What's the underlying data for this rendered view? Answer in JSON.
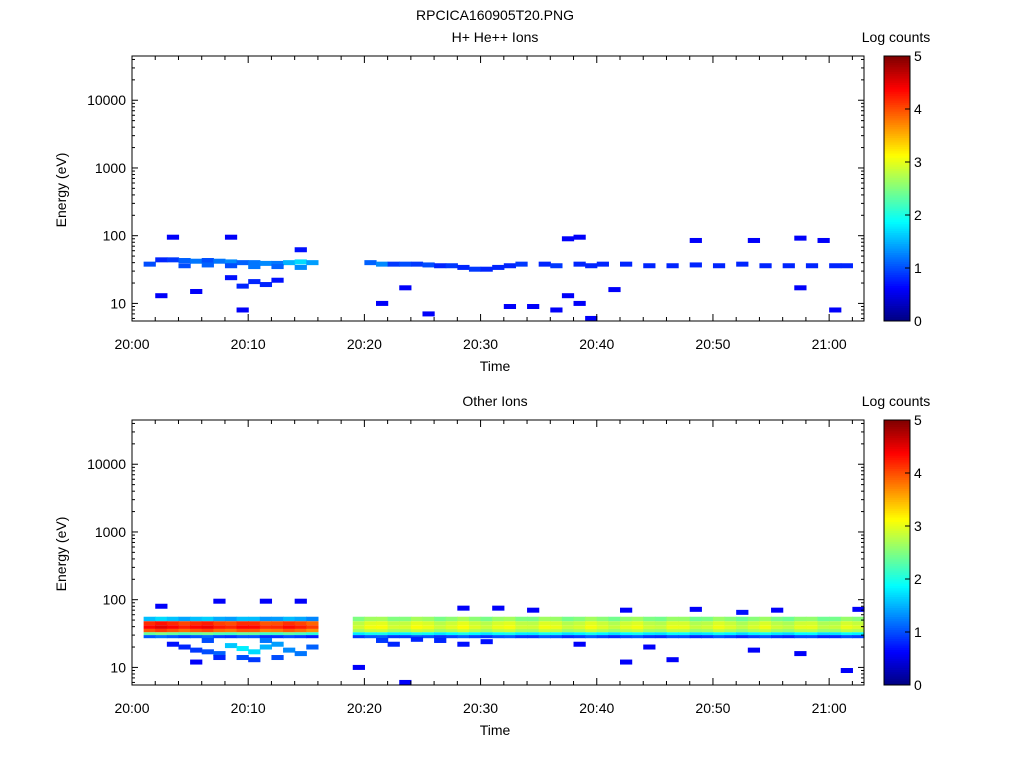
{
  "figure": {
    "filename": "RPCICA160905T20.PNG"
  },
  "colormap": [
    "#00007f",
    "#0000ff",
    "#0080ff",
    "#00ffff",
    "#80ff80",
    "#ffff00",
    "#ff8000",
    "#ff0000",
    "#7f0000"
  ],
  "chart_data": [
    {
      "type": "heatmap",
      "title": "H+ He++ Ions",
      "xlabel": "Time",
      "ylabel": "Energy (eV)",
      "colorbar_label": "Log counts",
      "xlim": [
        "20:00",
        "21:03"
      ],
      "ylim": [
        5.5,
        45000
      ],
      "yscale": "log",
      "xticks": [
        "20:00",
        "20:10",
        "20:20",
        "20:30",
        "20:40",
        "20:50",
        "21:00"
      ],
      "yticks": [
        "10",
        "100",
        "1000",
        "10000"
      ],
      "clim": [
        0,
        5
      ],
      "cticks": [
        "0",
        "1",
        "2",
        "3",
        "4",
        "5"
      ],
      "data_gap": [
        "20:16",
        "20:19"
      ],
      "cells": [
        {
          "t": "20:01",
          "e": 38,
          "v": 1.0
        },
        {
          "t": "20:02",
          "e": 44,
          "v": 0.8
        },
        {
          "t": "20:03",
          "e": 44,
          "v": 0.9
        },
        {
          "t": "20:04",
          "e": 43,
          "v": 1.1
        },
        {
          "t": "20:05",
          "e": 42,
          "v": 1.2
        },
        {
          "t": "20:06",
          "e": 43,
          "v": 1.0
        },
        {
          "t": "20:07",
          "e": 42,
          "v": 1.2
        },
        {
          "t": "20:08",
          "e": 41,
          "v": 1.3
        },
        {
          "t": "20:09",
          "e": 40,
          "v": 1.1
        },
        {
          "t": "20:10",
          "e": 40,
          "v": 1.2
        },
        {
          "t": "20:11",
          "e": 39,
          "v": 1.3
        },
        {
          "t": "20:12",
          "e": 39,
          "v": 1.2
        },
        {
          "t": "20:13",
          "e": 40,
          "v": 1.5
        },
        {
          "t": "20:14",
          "e": 41,
          "v": 1.7
        },
        {
          "t": "20:15",
          "e": 40,
          "v": 1.4
        },
        {
          "t": "20:04",
          "e": 36,
          "v": 1.0
        },
        {
          "t": "20:06",
          "e": 37,
          "v": 1.1
        },
        {
          "t": "20:08",
          "e": 36,
          "v": 1.0
        },
        {
          "t": "20:10",
          "e": 35,
          "v": 1.2
        },
        {
          "t": "20:12",
          "e": 35,
          "v": 1.1
        },
        {
          "t": "20:14",
          "e": 34,
          "v": 1.3
        },
        {
          "t": "20:08",
          "e": 24,
          "v": 0.7
        },
        {
          "t": "20:10",
          "e": 21,
          "v": 0.8
        },
        {
          "t": "20:11",
          "e": 19,
          "v": 0.8
        },
        {
          "t": "20:12",
          "e": 22,
          "v": 0.7
        },
        {
          "t": "20:09",
          "e": 18,
          "v": 0.8
        },
        {
          "t": "20:05",
          "e": 15,
          "v": 0.6
        },
        {
          "t": "20:02",
          "e": 13,
          "v": 0.6
        },
        {
          "t": "20:03",
          "e": 95,
          "v": 0.6
        },
        {
          "t": "20:08",
          "e": 95,
          "v": 0.6
        },
        {
          "t": "20:14",
          "e": 62,
          "v": 0.7
        },
        {
          "t": "20:09",
          "e": 8,
          "v": 0.6
        },
        {
          "t": "20:20",
          "e": 40,
          "v": 1.1
        },
        {
          "t": "20:21",
          "e": 38,
          "v": 1.3
        },
        {
          "t": "20:22",
          "e": 38,
          "v": 0.9
        },
        {
          "t": "20:23",
          "e": 38,
          "v": 1.0
        },
        {
          "t": "20:24",
          "e": 38,
          "v": 0.9
        },
        {
          "t": "20:25",
          "e": 37,
          "v": 1.0
        },
        {
          "t": "20:26",
          "e": 36,
          "v": 0.8
        },
        {
          "t": "20:27",
          "e": 36,
          "v": 0.9
        },
        {
          "t": "20:28",
          "e": 34,
          "v": 0.8
        },
        {
          "t": "20:29",
          "e": 32,
          "v": 0.9
        },
        {
          "t": "20:30",
          "e": 32,
          "v": 0.8
        },
        {
          "t": "20:31",
          "e": 34,
          "v": 0.8
        },
        {
          "t": "20:32",
          "e": 36,
          "v": 0.8
        },
        {
          "t": "20:33",
          "e": 38,
          "v": 0.9
        },
        {
          "t": "20:35",
          "e": 38,
          "v": 0.8
        },
        {
          "t": "20:36",
          "e": 36,
          "v": 0.9
        },
        {
          "t": "20:38",
          "e": 38,
          "v": 0.8
        },
        {
          "t": "20:39",
          "e": 36,
          "v": 0.8
        },
        {
          "t": "20:40",
          "e": 38,
          "v": 0.8
        },
        {
          "t": "20:42",
          "e": 38,
          "v": 0.8
        },
        {
          "t": "20:44",
          "e": 36,
          "v": 0.8
        },
        {
          "t": "20:46",
          "e": 36,
          "v": 0.8
        },
        {
          "t": "20:48",
          "e": 37,
          "v": 0.8
        },
        {
          "t": "20:50",
          "e": 36,
          "v": 0.8
        },
        {
          "t": "20:52",
          "e": 38,
          "v": 0.8
        },
        {
          "t": "20:54",
          "e": 36,
          "v": 0.8
        },
        {
          "t": "20:56",
          "e": 36,
          "v": 0.8
        },
        {
          "t": "20:58",
          "e": 36,
          "v": 0.8
        },
        {
          "t": "21:00",
          "e": 36,
          "v": 0.8
        },
        {
          "t": "21:01",
          "e": 36,
          "v": 0.8
        },
        {
          "t": "20:21",
          "e": 10,
          "v": 0.6
        },
        {
          "t": "20:23",
          "e": 17,
          "v": 0.6
        },
        {
          "t": "20:25",
          "e": 7,
          "v": 0.6
        },
        {
          "t": "20:32",
          "e": 9,
          "v": 0.6
        },
        {
          "t": "20:34",
          "e": 9,
          "v": 0.6
        },
        {
          "t": "20:36",
          "e": 8,
          "v": 0.6
        },
        {
          "t": "20:38",
          "e": 10,
          "v": 0.6
        },
        {
          "t": "20:39",
          "e": 6,
          "v": 0.6
        },
        {
          "t": "20:37",
          "e": 13,
          "v": 0.6
        },
        {
          "t": "20:41",
          "e": 16,
          "v": 0.6
        },
        {
          "t": "20:38",
          "e": 95,
          "v": 0.6
        },
        {
          "t": "20:37",
          "e": 90,
          "v": 0.6
        },
        {
          "t": "20:48",
          "e": 85,
          "v": 0.6
        },
        {
          "t": "20:53",
          "e": 85,
          "v": 0.6
        },
        {
          "t": "20:57",
          "e": 92,
          "v": 0.6
        },
        {
          "t": "20:59",
          "e": 85,
          "v": 0.6
        },
        {
          "t": "21:00",
          "e": 8,
          "v": 0.6
        },
        {
          "t": "20:57",
          "e": 17,
          "v": 0.6
        }
      ]
    },
    {
      "type": "heatmap",
      "title": "Other Ions",
      "xlabel": "Time",
      "ylabel": "Energy (eV)",
      "colorbar_label": "Log counts",
      "xlim": [
        "20:00",
        "21:03"
      ],
      "ylim": [
        5.5,
        45000
      ],
      "yscale": "log",
      "xticks": [
        "20:00",
        "20:10",
        "20:20",
        "20:30",
        "20:40",
        "20:50",
        "21:00"
      ],
      "yticks": [
        "10",
        "100",
        "1000",
        "10000"
      ],
      "clim": [
        0,
        5
      ],
      "cticks": [
        "0",
        "1",
        "2",
        "3",
        "4",
        "5"
      ],
      "data_gap": [
        "20:16",
        "20:19"
      ],
      "band_rows": [
        {
          "e_lo": 48,
          "e_hi": 56,
          "v0": 1.6,
          "v1": 2.6
        },
        {
          "e_lo": 42,
          "e_hi": 48,
          "v0": 4.2,
          "v1": 2.9
        },
        {
          "e_lo": 37,
          "e_hi": 42,
          "v0": 4.4,
          "v1": 3.0
        },
        {
          "e_lo": 33,
          "e_hi": 37,
          "v0": 4.0,
          "v1": 2.8
        },
        {
          "e_lo": 30,
          "e_hi": 33,
          "v0": 2.4,
          "v1": 1.9
        },
        {
          "e_lo": 27,
          "e_hi": 30,
          "v0": 1.1,
          "v1": 1.0
        }
      ],
      "cells": [
        {
          "t": "20:03",
          "e": 22,
          "v": 0.7
        },
        {
          "t": "20:04",
          "e": 20,
          "v": 0.8
        },
        {
          "t": "20:05",
          "e": 18,
          "v": 0.9
        },
        {
          "t": "20:06",
          "e": 17,
          "v": 1.0
        },
        {
          "t": "20:07",
          "e": 16,
          "v": 1.1
        },
        {
          "t": "20:08",
          "e": 21,
          "v": 1.6
        },
        {
          "t": "20:09",
          "e": 19,
          "v": 1.8
        },
        {
          "t": "20:10",
          "e": 17,
          "v": 1.7
        },
        {
          "t": "20:11",
          "e": 20,
          "v": 1.5
        },
        {
          "t": "20:12",
          "e": 22,
          "v": 1.4
        },
        {
          "t": "20:13",
          "e": 18,
          "v": 1.3
        },
        {
          "t": "20:14",
          "e": 16,
          "v": 1.2
        },
        {
          "t": "20:15",
          "e": 20,
          "v": 1.1
        },
        {
          "t": "20:09",
          "e": 14,
          "v": 1.0
        },
        {
          "t": "20:10",
          "e": 13,
          "v": 0.9
        },
        {
          "t": "20:12",
          "e": 14,
          "v": 1.0
        },
        {
          "t": "20:07",
          "e": 14,
          "v": 0.8
        },
        {
          "t": "20:06",
          "e": 25,
          "v": 1.0
        },
        {
          "t": "20:11",
          "e": 25,
          "v": 1.2
        },
        {
          "t": "20:02",
          "e": 80,
          "v": 0.6
        },
        {
          "t": "20:07",
          "e": 95,
          "v": 0.6
        },
        {
          "t": "20:11",
          "e": 95,
          "v": 0.6
        },
        {
          "t": "20:14",
          "e": 95,
          "v": 0.6
        },
        {
          "t": "20:05",
          "e": 12,
          "v": 0.6
        },
        {
          "t": "20:21",
          "e": 25,
          "v": 0.9
        },
        {
          "t": "20:22",
          "e": 22,
          "v": 0.8
        },
        {
          "t": "20:24",
          "e": 26,
          "v": 0.8
        },
        {
          "t": "20:26",
          "e": 25,
          "v": 0.8
        },
        {
          "t": "20:28",
          "e": 22,
          "v": 0.7
        },
        {
          "t": "20:30",
          "e": 24,
          "v": 0.7
        },
        {
          "t": "20:19",
          "e": 10,
          "v": 0.6
        },
        {
          "t": "20:23",
          "e": 6,
          "v": 0.6
        },
        {
          "t": "20:28",
          "e": 75,
          "v": 0.6
        },
        {
          "t": "20:31",
          "e": 75,
          "v": 0.6
        },
        {
          "t": "20:34",
          "e": 70,
          "v": 0.6
        },
        {
          "t": "20:42",
          "e": 70,
          "v": 0.6
        },
        {
          "t": "20:48",
          "e": 72,
          "v": 0.6
        },
        {
          "t": "20:52",
          "e": 65,
          "v": 0.7
        },
        {
          "t": "20:55",
          "e": 70,
          "v": 0.6
        },
        {
          "t": "21:02",
          "e": 72,
          "v": 0.6
        },
        {
          "t": "20:42",
          "e": 12,
          "v": 0.6
        },
        {
          "t": "20:46",
          "e": 13,
          "v": 0.6
        },
        {
          "t": "20:53",
          "e": 18,
          "v": 0.6
        },
        {
          "t": "20:57",
          "e": 16,
          "v": 0.6
        },
        {
          "t": "21:01",
          "e": 9,
          "v": 0.6
        },
        {
          "t": "20:44",
          "e": 20,
          "v": 0.6
        },
        {
          "t": "20:38",
          "e": 22,
          "v": 0.6
        }
      ]
    }
  ]
}
